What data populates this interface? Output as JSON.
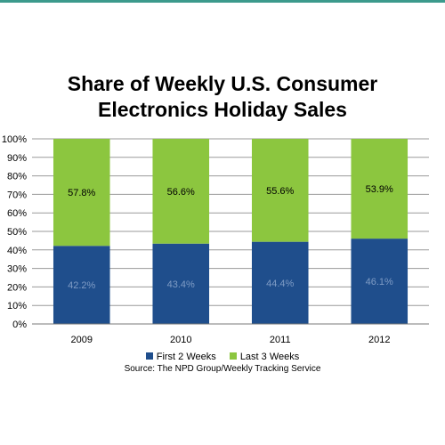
{
  "chart_data": {
    "type": "bar",
    "stacked": true,
    "title_lines": [
      "Share of Weekly U.S. Consumer",
      "Electronics Holiday Sales"
    ],
    "categories": [
      "2009",
      "2010",
      "2011",
      "2012"
    ],
    "series": [
      {
        "name": "First 2 Weeks",
        "values": [
          42.2,
          43.4,
          44.4,
          46.1
        ],
        "labels": [
          "42.2%",
          "43.4%",
          "44.4%",
          "46.1%"
        ],
        "color": "#1f4e8c",
        "label_color": "#7f9cc5"
      },
      {
        "name": "Last 3 Weeks",
        "values": [
          57.8,
          56.6,
          55.6,
          53.9
        ],
        "labels": [
          "57.8%",
          "56.6%",
          "55.6%",
          "53.9%"
        ],
        "color": "#8cc63f",
        "label_color": "#000000"
      }
    ],
    "yticks": [
      "0%",
      "10%",
      "20%",
      "30%",
      "40%",
      "50%",
      "60%",
      "70%",
      "80%",
      "90%",
      "100%"
    ],
    "ylim": [
      0,
      100
    ],
    "grid": true,
    "legend_position": "bottom",
    "source": "Source: The NPD Group/Weekly Tracking Service"
  }
}
